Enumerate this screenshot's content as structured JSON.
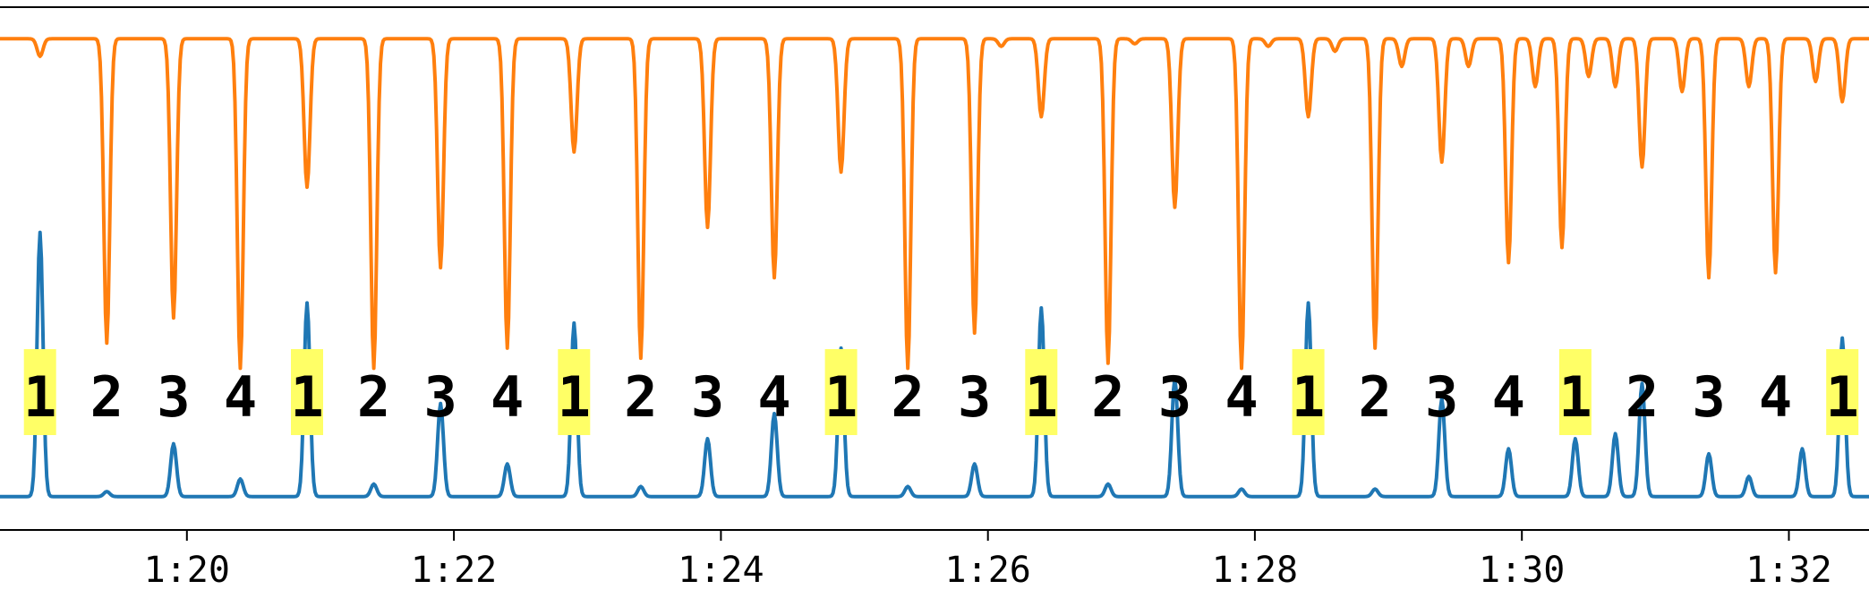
{
  "chart_data": {
    "type": "line",
    "x_axis": {
      "unit": "time (m:ss)",
      "range_seconds": [
        78.6,
        92.6
      ],
      "ticks": [
        {
          "t": 80,
          "label": "1:20"
        },
        {
          "t": 82,
          "label": "1:22"
        },
        {
          "t": 84,
          "label": "1:24"
        },
        {
          "t": 86,
          "label": "1:26"
        },
        {
          "t": 88,
          "label": "1:28"
        },
        {
          "t": 90,
          "label": "1:30"
        },
        {
          "t": 92,
          "label": "1:32"
        }
      ]
    },
    "y_range": [
      0,
      1
    ],
    "grid": false,
    "series": [
      {
        "color": "#ff7f0e",
        "baseline": 0.955,
        "dips": [
          {
            "t": 78.9,
            "v": 0.92
          },
          {
            "t": 79.4,
            "v": 0.35
          },
          {
            "t": 79.9,
            "v": 0.4
          },
          {
            "t": 80.4,
            "v": 0.3
          },
          {
            "t": 80.9,
            "v": 0.66
          },
          {
            "t": 81.4,
            "v": 0.3
          },
          {
            "t": 81.9,
            "v": 0.5
          },
          {
            "t": 82.4,
            "v": 0.34
          },
          {
            "t": 82.9,
            "v": 0.73
          },
          {
            "t": 83.4,
            "v": 0.32
          },
          {
            "t": 83.9,
            "v": 0.58
          },
          {
            "t": 84.4,
            "v": 0.48
          },
          {
            "t": 84.9,
            "v": 0.69
          },
          {
            "t": 85.4,
            "v": 0.3
          },
          {
            "t": 85.9,
            "v": 0.37
          },
          {
            "t": 86.1,
            "v": 0.94
          },
          {
            "t": 86.4,
            "v": 0.8
          },
          {
            "t": 86.9,
            "v": 0.31
          },
          {
            "t": 87.1,
            "v": 0.945
          },
          {
            "t": 87.4,
            "v": 0.62
          },
          {
            "t": 87.9,
            "v": 0.3
          },
          {
            "t": 88.1,
            "v": 0.94
          },
          {
            "t": 88.4,
            "v": 0.8
          },
          {
            "t": 88.6,
            "v": 0.93
          },
          {
            "t": 88.9,
            "v": 0.34
          },
          {
            "t": 89.1,
            "v": 0.9
          },
          {
            "t": 89.4,
            "v": 0.71
          },
          {
            "t": 89.6,
            "v": 0.9
          },
          {
            "t": 89.9,
            "v": 0.51
          },
          {
            "t": 90.1,
            "v": 0.86
          },
          {
            "t": 90.3,
            "v": 0.54
          },
          {
            "t": 90.5,
            "v": 0.88
          },
          {
            "t": 90.7,
            "v": 0.86
          },
          {
            "t": 90.9,
            "v": 0.7
          },
          {
            "t": 91.2,
            "v": 0.85
          },
          {
            "t": 91.4,
            "v": 0.48
          },
          {
            "t": 91.7,
            "v": 0.86
          },
          {
            "t": 91.9,
            "v": 0.49
          },
          {
            "t": 92.2,
            "v": 0.87
          },
          {
            "t": 92.4,
            "v": 0.83
          }
        ]
      },
      {
        "color": "#1f77b4",
        "baseline": 0.045,
        "peaks": [
          {
            "t": 78.9,
            "v": 0.57
          },
          {
            "t": 79.4,
            "v": 0.055
          },
          {
            "t": 79.9,
            "v": 0.15
          },
          {
            "t": 80.4,
            "v": 0.08
          },
          {
            "t": 80.9,
            "v": 0.43
          },
          {
            "t": 81.4,
            "v": 0.07
          },
          {
            "t": 81.9,
            "v": 0.23
          },
          {
            "t": 82.4,
            "v": 0.11
          },
          {
            "t": 82.9,
            "v": 0.39
          },
          {
            "t": 83.4,
            "v": 0.065
          },
          {
            "t": 83.9,
            "v": 0.16
          },
          {
            "t": 84.4,
            "v": 0.21
          },
          {
            "t": 84.9,
            "v": 0.34
          },
          {
            "t": 85.4,
            "v": 0.065
          },
          {
            "t": 85.9,
            "v": 0.11
          },
          {
            "t": 86.4,
            "v": 0.42
          },
          {
            "t": 86.9,
            "v": 0.07
          },
          {
            "t": 87.4,
            "v": 0.28
          },
          {
            "t": 87.9,
            "v": 0.06
          },
          {
            "t": 88.4,
            "v": 0.43
          },
          {
            "t": 88.9,
            "v": 0.06
          },
          {
            "t": 89.4,
            "v": 0.24
          },
          {
            "t": 89.9,
            "v": 0.14
          },
          {
            "t": 90.4,
            "v": 0.16
          },
          {
            "t": 90.7,
            "v": 0.17
          },
          {
            "t": 90.9,
            "v": 0.27
          },
          {
            "t": 91.4,
            "v": 0.13
          },
          {
            "t": 91.7,
            "v": 0.085
          },
          {
            "t": 92.1,
            "v": 0.14
          },
          {
            "t": 92.4,
            "v": 0.36
          }
        ]
      }
    ],
    "annotations": {
      "highlight_color": "#ffff66",
      "beats": [
        {
          "t": 78.9,
          "label": "1",
          "highlight": true
        },
        {
          "t": 79.4,
          "label": "2",
          "highlight": false
        },
        {
          "t": 79.9,
          "label": "3",
          "highlight": false
        },
        {
          "t": 80.4,
          "label": "4",
          "highlight": false
        },
        {
          "t": 80.9,
          "label": "1",
          "highlight": true
        },
        {
          "t": 81.4,
          "label": "2",
          "highlight": false
        },
        {
          "t": 81.9,
          "label": "3",
          "highlight": false
        },
        {
          "t": 82.4,
          "label": "4",
          "highlight": false
        },
        {
          "t": 82.9,
          "label": "1",
          "highlight": true
        },
        {
          "t": 83.4,
          "label": "2",
          "highlight": false
        },
        {
          "t": 83.9,
          "label": "3",
          "highlight": false
        },
        {
          "t": 84.4,
          "label": "4",
          "highlight": false
        },
        {
          "t": 84.9,
          "label": "1",
          "highlight": true
        },
        {
          "t": 85.4,
          "label": "2",
          "highlight": false
        },
        {
          "t": 85.9,
          "label": "3",
          "highlight": false
        },
        {
          "t": 86.4,
          "label": "1",
          "highlight": true
        },
        {
          "t": 86.9,
          "label": "2",
          "highlight": false
        },
        {
          "t": 87.4,
          "label": "3",
          "highlight": false
        },
        {
          "t": 87.9,
          "label": "4",
          "highlight": false
        },
        {
          "t": 88.4,
          "label": "1",
          "highlight": true
        },
        {
          "t": 88.9,
          "label": "2",
          "highlight": false
        },
        {
          "t": 89.4,
          "label": "3",
          "highlight": false
        },
        {
          "t": 89.9,
          "label": "4",
          "highlight": false
        },
        {
          "t": 90.4,
          "label": "1",
          "highlight": true
        },
        {
          "t": 90.9,
          "label": "2",
          "highlight": false
        },
        {
          "t": 91.4,
          "label": "3",
          "highlight": false
        },
        {
          "t": 91.9,
          "label": "4",
          "highlight": false
        },
        {
          "t": 92.4,
          "label": "1",
          "highlight": true
        }
      ]
    }
  }
}
